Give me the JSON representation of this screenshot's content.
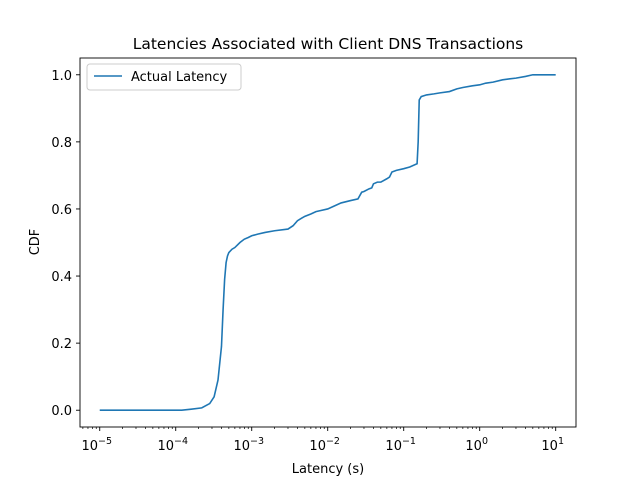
{
  "chart_data": {
    "type": "line",
    "title": "Latencies Associated with Client DNS Transactions",
    "xlabel": "Latency (s)",
    "ylabel": "CDF",
    "xscale": "log",
    "xlim": [
      5.5e-06,
      18.5
    ],
    "ylim": [
      -0.05,
      1.05
    ],
    "xticks": [
      {
        "value": 1e-05,
        "base": "10",
        "exp": "−5"
      },
      {
        "value": 0.0001,
        "base": "10",
        "exp": "−4"
      },
      {
        "value": 0.001,
        "base": "10",
        "exp": "−3"
      },
      {
        "value": 0.01,
        "base": "10",
        "exp": "−2"
      },
      {
        "value": 0.1,
        "base": "10",
        "exp": "−1"
      },
      {
        "value": 1,
        "base": "10",
        "exp": "0"
      },
      {
        "value": 10,
        "base": "10",
        "exp": "1"
      }
    ],
    "yticks": [
      {
        "value": 0.0,
        "label": "0.0"
      },
      {
        "value": 0.2,
        "label": "0.2"
      },
      {
        "value": 0.4,
        "label": "0.4"
      },
      {
        "value": 0.6,
        "label": "0.6"
      },
      {
        "value": 0.8,
        "label": "0.8"
      },
      {
        "value": 1.0,
        "label": "1.0"
      }
    ],
    "grid": false,
    "legend_position": "top-left",
    "series": [
      {
        "name": "Actual Latency",
        "color": "#1f77b4",
        "x": [
          1e-05,
          0.00012,
          0.00016,
          0.00022,
          0.00028,
          0.00032,
          0.00036,
          0.0004,
          0.00042,
          0.00044,
          0.00046,
          0.00048,
          0.0005,
          0.00055,
          0.0006,
          0.0007,
          0.0008,
          0.0009,
          0.001,
          0.0012,
          0.0015,
          0.002,
          0.003,
          0.0035,
          0.004,
          0.0045,
          0.005,
          0.006,
          0.007,
          0.008,
          0.01,
          0.012,
          0.015,
          0.02,
          0.025,
          0.028,
          0.03,
          0.035,
          0.038,
          0.04,
          0.045,
          0.05,
          0.06,
          0.065,
          0.07,
          0.08,
          0.1,
          0.12,
          0.15,
          0.155,
          0.16,
          0.17,
          0.2,
          0.25,
          0.3,
          0.4,
          0.5,
          0.6,
          0.8,
          1.0,
          1.2,
          1.5,
          2.0,
          2.5,
          3.0,
          4.0,
          5.0,
          6.0,
          10.0
        ],
        "y": [
          0.0,
          0.0,
          0.003,
          0.007,
          0.02,
          0.04,
          0.09,
          0.19,
          0.3,
          0.39,
          0.44,
          0.46,
          0.47,
          0.48,
          0.485,
          0.5,
          0.51,
          0.515,
          0.52,
          0.525,
          0.53,
          0.535,
          0.54,
          0.55,
          0.565,
          0.572,
          0.578,
          0.585,
          0.592,
          0.595,
          0.6,
          0.608,
          0.618,
          0.625,
          0.63,
          0.65,
          0.652,
          0.66,
          0.663,
          0.675,
          0.68,
          0.68,
          0.69,
          0.695,
          0.71,
          0.715,
          0.72,
          0.725,
          0.735,
          0.8,
          0.925,
          0.935,
          0.94,
          0.943,
          0.946,
          0.95,
          0.958,
          0.962,
          0.967,
          0.97,
          0.975,
          0.978,
          0.985,
          0.988,
          0.99,
          0.995,
          1.0,
          1.0,
          1.0
        ]
      }
    ]
  }
}
